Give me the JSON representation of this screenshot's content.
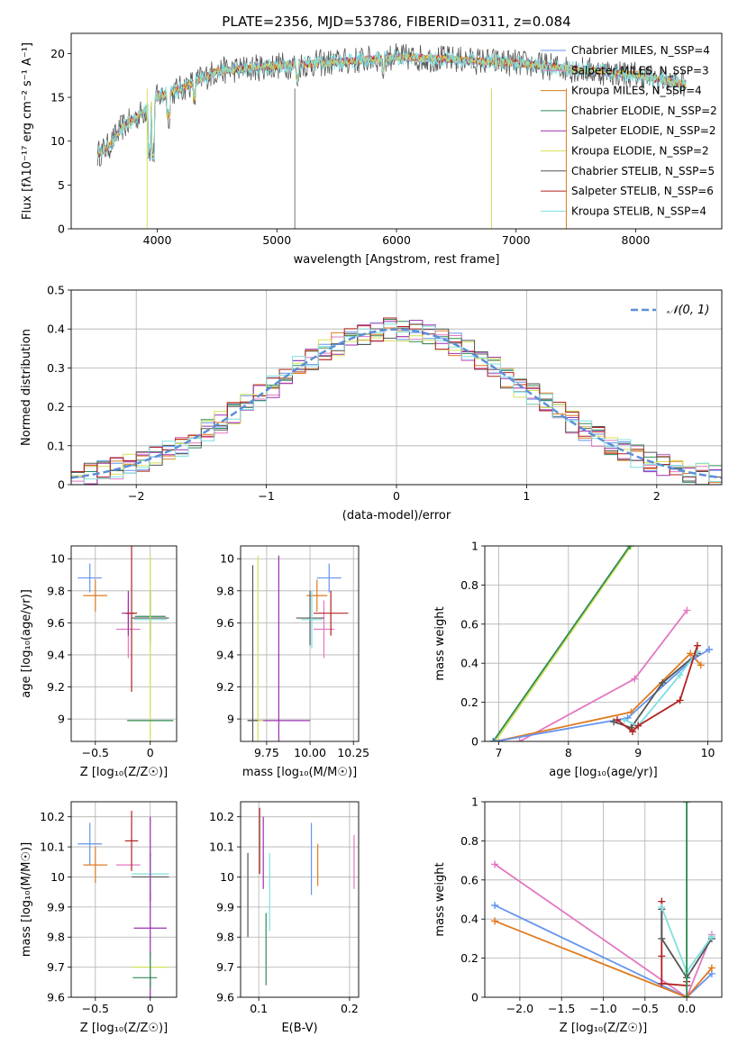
{
  "chart_data": [
    {
      "id": "spectrum",
      "type": "line",
      "title": "PLATE=2356, MJD=53786, FIBERID=0311, z=0.084",
      "xlabel": "wavelength [Angstrom, rest frame]",
      "ylabel": "Flux [fλ10⁻¹⁷ erg cm⁻² s⁻¹ A⁻¹]",
      "xlim": [
        3280,
        8720
      ],
      "ylim": [
        0,
        22.3
      ],
      "xticks": [
        4000,
        5000,
        6000,
        7000,
        8000
      ],
      "yticks": [
        0,
        5,
        10,
        15,
        20
      ],
      "legend": "top-right",
      "series": [
        {
          "name": "Chabrier MILES, N_SSP=4",
          "color": "#6495ed"
        },
        {
          "name": "Salpeter MILES, N_SSP=3",
          "color": "#e377c2"
        },
        {
          "name": "Kroupa MILES, N_SSP=4",
          "color": "#e07b20"
        },
        {
          "name": "Chabrier ELODIE, N_SSP=2",
          "color": "#2e8b57"
        },
        {
          "name": "Salpeter ELODIE, N_SSP=2",
          "color": "#9b30b0"
        },
        {
          "name": "Kroupa ELODIE, N_SSP=2",
          "color": "#d4e157"
        },
        {
          "name": "Chabrier STELIB, N_SSP=5",
          "color": "#555555"
        },
        {
          "name": "Salpeter STELIB, N_SSP=6",
          "color": "#b22222"
        },
        {
          "name": "Kroupa STELIB, N_SSP=4",
          "color": "#7fdfdf"
        }
      ],
      "spectrum_trend": {
        "x": [
          3500,
          3600,
          3700,
          3800,
          3900,
          4000,
          4200,
          4500,
          5000,
          5500,
          6000,
          6500,
          7000,
          7500,
          8000,
          8400
        ],
        "y": [
          8.5,
          9.5,
          11.5,
          12.5,
          13.5,
          15.0,
          16.0,
          18.0,
          18.6,
          19.0,
          19.6,
          19.3,
          18.9,
          18.2,
          17.6,
          16.5
        ]
      }
    },
    {
      "id": "residuals",
      "type": "line",
      "xlabel": "(data-model)/error",
      "ylabel": "Normed distribution",
      "xlim": [
        -2.5,
        2.5
      ],
      "ylim": [
        0,
        0.5
      ],
      "xticks": [
        -2,
        -1,
        0,
        1,
        2
      ],
      "xtick_labels": [
        "−2",
        "−1",
        "0",
        "1",
        "2"
      ],
      "yticks": [
        0,
        0.1,
        0.2,
        0.3,
        0.4,
        0.5
      ],
      "legend": "top-right",
      "legend_label": "𝒩(0, 1)",
      "gaussian": {
        "mean": 0,
        "sigma": 1,
        "color": "#5b8fd9"
      }
    },
    {
      "id": "age_vs_Z",
      "type": "scatter",
      "xlabel": "Z [log₁₀(Z/Z☉)]",
      "ylabel": "age  [log₁₀(age/yr)]",
      "xlim": [
        -0.72,
        0.24
      ],
      "ylim": [
        8.86,
        10.08
      ],
      "xticks": [
        -0.5,
        0.0
      ],
      "yticks": [
        9.0,
        9.2,
        9.4,
        9.6,
        9.8,
        10.0
      ],
      "points": [
        {
          "x": -0.55,
          "y": 9.88,
          "xerr": 0.11,
          "yerr": 0.09,
          "color": "#6495ed"
        },
        {
          "x": -0.5,
          "y": 9.77,
          "xerr": 0.11,
          "yerr": 0.1,
          "color": "#e07b20"
        },
        {
          "x": -0.2,
          "y": 9.56,
          "xerr": 0.11,
          "yerr": 0.18,
          "color": "#e377c2"
        },
        {
          "x": -0.2,
          "y": 9.66,
          "xerr": 0.06,
          "yerr": 0.14,
          "color": "#9b30b0"
        },
        {
          "x": -0.17,
          "y": 9.66,
          "xerr": 0.05,
          "yerr": 0.49,
          "color": "#b22222"
        },
        {
          "x": 0.0,
          "y": 9.63,
          "xerr": 0.17,
          "yerr": 0.17,
          "color": "#555555"
        },
        {
          "x": 0.0,
          "y": 9.62,
          "xerr": 0.15,
          "yerr": 0.18,
          "color": "#7fdfdf"
        },
        {
          "x": 0.0,
          "y": 9.64,
          "xerr": 0.14,
          "yerr": 0.16,
          "color": "#2e8b57"
        },
        {
          "x": 0.0,
          "y": 8.99,
          "xerr": 0.21,
          "yerr": 1.03,
          "color": "#d4e157"
        },
        {
          "x": 0.0,
          "y": 8.99,
          "xerr": 0.21,
          "yerr": 0.0,
          "color": "#2e8b57"
        }
      ]
    },
    {
      "id": "age_vs_mass",
      "type": "scatter",
      "xlabel": "mass [log₁₀(M/M☉)]",
      "xlim": [
        9.6,
        10.28
      ],
      "ylim": [
        8.86,
        10.08
      ],
      "xticks": [
        9.75,
        10.0,
        10.25
      ],
      "xtick_labels": [
        "9.75",
        "10.00",
        "10.25"
      ],
      "yticks": [
        9.0,
        9.2,
        9.4,
        9.6,
        9.8,
        10.0
      ],
      "points": [
        {
          "x": 10.11,
          "y": 9.88,
          "xerr": 0.07,
          "yerr": 0.09,
          "color": "#6495ed"
        },
        {
          "x": 10.04,
          "y": 9.77,
          "xerr": 0.06,
          "yerr": 0.1,
          "color": "#e07b20"
        },
        {
          "x": 10.08,
          "y": 9.56,
          "xerr": 0.06,
          "yerr": 0.18,
          "color": "#e377c2"
        },
        {
          "x": 10.12,
          "y": 9.66,
          "xerr": 0.1,
          "yerr": 0.14,
          "color": "#b22222"
        },
        {
          "x": 10.0,
          "y": 9.63,
          "xerr": 0.08,
          "yerr": 0.17,
          "color": "#555555"
        },
        {
          "x": 10.01,
          "y": 9.62,
          "xerr": 0.06,
          "yerr": 0.18,
          "color": "#7fdfdf"
        },
        {
          "x": 9.82,
          "y": 8.99,
          "xerr": 0.18,
          "yerr": 1.03,
          "color": "#9b30b0"
        },
        {
          "x": 9.7,
          "y": 8.99,
          "xerr": 0.03,
          "yerr": 1.03,
          "color": "#d4e157"
        },
        {
          "x": 9.67,
          "y": 8.99,
          "xerr": 0.03,
          "yerr": 0.97,
          "color": "#555555"
        }
      ]
    },
    {
      "id": "massweight_vs_age",
      "type": "line",
      "xlabel": "age  [log₁₀(age/yr)]",
      "ylabel": "mass weight",
      "xlim": [
        6.8,
        10.2
      ],
      "ylim": [
        0,
        1.0
      ],
      "xticks": [
        7,
        8,
        9,
        10
      ],
      "yticks": [
        0,
        0.2,
        0.4,
        0.6,
        0.8,
        1.0
      ],
      "series": [
        {
          "color": "#d4e157",
          "x": [
            6.95,
            8.9
          ],
          "y": [
            0.0,
            1.0
          ]
        },
        {
          "color": "#2e8b57",
          "x": [
            6.92,
            8.88
          ],
          "y": [
            0.0,
            1.0
          ]
        },
        {
          "color": "#e377c2",
          "x": [
            7.3,
            8.95,
            9.7
          ],
          "y": [
            0.0,
            0.32,
            0.67
          ]
        },
        {
          "color": "#e07b20",
          "x": [
            6.95,
            8.9,
            9.75,
            9.9
          ],
          "y": [
            0.0,
            0.15,
            0.45,
            0.39
          ]
        },
        {
          "color": "#6495ed",
          "x": [
            6.95,
            8.85,
            9.78,
            10.02
          ],
          "y": [
            0.0,
            0.12,
            0.42,
            0.47
          ]
        },
        {
          "color": "#555555",
          "x": [
            8.65,
            8.9,
            9.35,
            9.85
          ],
          "y": [
            0.1,
            0.07,
            0.3,
            0.45
          ]
        },
        {
          "color": "#7fdfdf",
          "x": [
            8.8,
            9.0,
            9.6,
            9.85
          ],
          "y": [
            0.11,
            0.08,
            0.34,
            0.46
          ]
        },
        {
          "color": "#b22222",
          "x": [
            8.7,
            8.92,
            9.0,
            9.6,
            9.85
          ],
          "y": [
            0.11,
            0.05,
            0.08,
            0.21,
            0.49
          ]
        }
      ]
    },
    {
      "id": "mass_vs_Z",
      "type": "scatter",
      "xlabel": "Z [log₁₀(Z/Z☉)]",
      "ylabel": "mass [log₁₀(M/M☉)]",
      "xlim": [
        -0.72,
        0.24
      ],
      "ylim": [
        9.6,
        10.25
      ],
      "xticks": [
        -0.5,
        0.0
      ],
      "yticks": [
        9.6,
        9.7,
        9.8,
        9.9,
        10.0,
        10.1,
        10.2
      ],
      "points": [
        {
          "x": -0.55,
          "y": 10.11,
          "xerr": 0.11,
          "yerr": 0.07,
          "color": "#6495ed"
        },
        {
          "x": -0.5,
          "y": 10.04,
          "xerr": 0.11,
          "yerr": 0.06,
          "color": "#e07b20"
        },
        {
          "x": -0.2,
          "y": 10.04,
          "xerr": 0.11,
          "yerr": 0.0,
          "color": "#e377c2"
        },
        {
          "x": -0.17,
          "y": 10.12,
          "xerr": 0.06,
          "yerr": 0.1,
          "color": "#b22222"
        },
        {
          "x": 0.0,
          "y": 10.0,
          "xerr": 0.17,
          "yerr": 0.08,
          "color": "#555555"
        },
        {
          "x": 0.0,
          "y": 10.01,
          "xerr": 0.17,
          "yerr": 0.06,
          "color": "#7fdfdf"
        },
        {
          "x": 0.0,
          "y": 9.83,
          "xerr": 0.15,
          "yerr": 0.37,
          "color": "#9b30b0"
        },
        {
          "x": 0.0,
          "y": 9.7,
          "xerr": 0.17,
          "yerr": 0.03,
          "color": "#d4e157"
        },
        {
          "x": -0.05,
          "y": 9.665,
          "xerr": 0.11,
          "yerr": 0.0,
          "color": "#2e8b57"
        },
        {
          "x": 0.0,
          "y": 9.69,
          "xerr": 0.0,
          "yerr": 0.06,
          "color": "#2e8b57"
        }
      ]
    },
    {
      "id": "mass_vs_EBV",
      "type": "scatter",
      "xlabel": "E(B-V)",
      "xlim": [
        0.08,
        0.21
      ],
      "ylim": [
        9.6,
        10.25
      ],
      "xticks": [
        0.1,
        0.2
      ],
      "yticks": [
        9.6,
        9.7,
        9.8,
        9.9,
        10.0,
        10.1,
        10.2
      ],
      "points": [
        {
          "x": 0.088,
          "y": 9.94,
          "yerr": 0.14,
          "color": "#555555"
        },
        {
          "x": 0.101,
          "y": 10.12,
          "yerr": 0.11,
          "color": "#b22222"
        },
        {
          "x": 0.105,
          "y": 10.08,
          "yerr": 0.12,
          "color": "#9b30b0"
        },
        {
          "x": 0.108,
          "y": 9.76,
          "yerr": 0.12,
          "color": "#2e8b57"
        },
        {
          "x": 0.112,
          "y": 9.95,
          "yerr": 0.13,
          "color": "#7fdfdf"
        },
        {
          "x": 0.158,
          "y": 10.06,
          "yerr": 0.12,
          "color": "#6495ed"
        },
        {
          "x": 0.165,
          "y": 10.04,
          "yerr": 0.07,
          "color": "#e07b20"
        },
        {
          "x": 0.205,
          "y": 10.05,
          "yerr": 0.09,
          "color": "#e377c2"
        }
      ]
    },
    {
      "id": "massweight_vs_Z",
      "type": "line",
      "xlabel": "Z [log₁₀(Z/Z☉)]",
      "ylabel": "mass weight",
      "xlim": [
        -2.42,
        0.42
      ],
      "ylim": [
        0,
        1.0
      ],
      "xticks": [
        -2.0,
        -1.5,
        -1.0,
        -0.5,
        0.0
      ],
      "xtick_labels": [
        "−2.0",
        "−1.5",
        "−1.0",
        "−0.5",
        "0.0"
      ],
      "yticks": [
        0,
        0.2,
        0.4,
        0.6,
        0.8,
        1.0
      ],
      "series": [
        {
          "color": "#e377c2",
          "x": [
            -2.3,
            0.0,
            0.3
          ],
          "y": [
            0.68,
            0.0,
            0.32
          ]
        },
        {
          "color": "#6495ed",
          "x": [
            -2.3,
            0.0,
            0.3
          ],
          "y": [
            0.47,
            0.0,
            0.12
          ]
        },
        {
          "color": "#e07b20",
          "x": [
            -2.3,
            0.0,
            0.3
          ],
          "y": [
            0.39,
            0.0,
            0.15
          ]
        },
        {
          "color": "#b22222",
          "x": [
            -0.3,
            -0.3,
            -0.3,
            0.0,
            0.0
          ],
          "y": [
            0.49,
            0.21,
            0.07,
            0.06,
            0.08
          ]
        },
        {
          "color": "#555555",
          "x": [
            -0.3,
            -0.3,
            0.0,
            0.3
          ],
          "y": [
            0.45,
            0.3,
            0.1,
            0.3
          ]
        },
        {
          "color": "#7fdfdf",
          "x": [
            -0.3,
            0.0,
            0.3
          ],
          "y": [
            0.46,
            0.13,
            0.31
          ]
        },
        {
          "color": "#d4e157",
          "x": [
            0.0,
            0.0
          ],
          "y": [
            1.0,
            0.0
          ]
        },
        {
          "color": "#2e8b57",
          "x": [
            0.0,
            0.0
          ],
          "y": [
            1.0,
            0.0
          ]
        }
      ]
    }
  ]
}
